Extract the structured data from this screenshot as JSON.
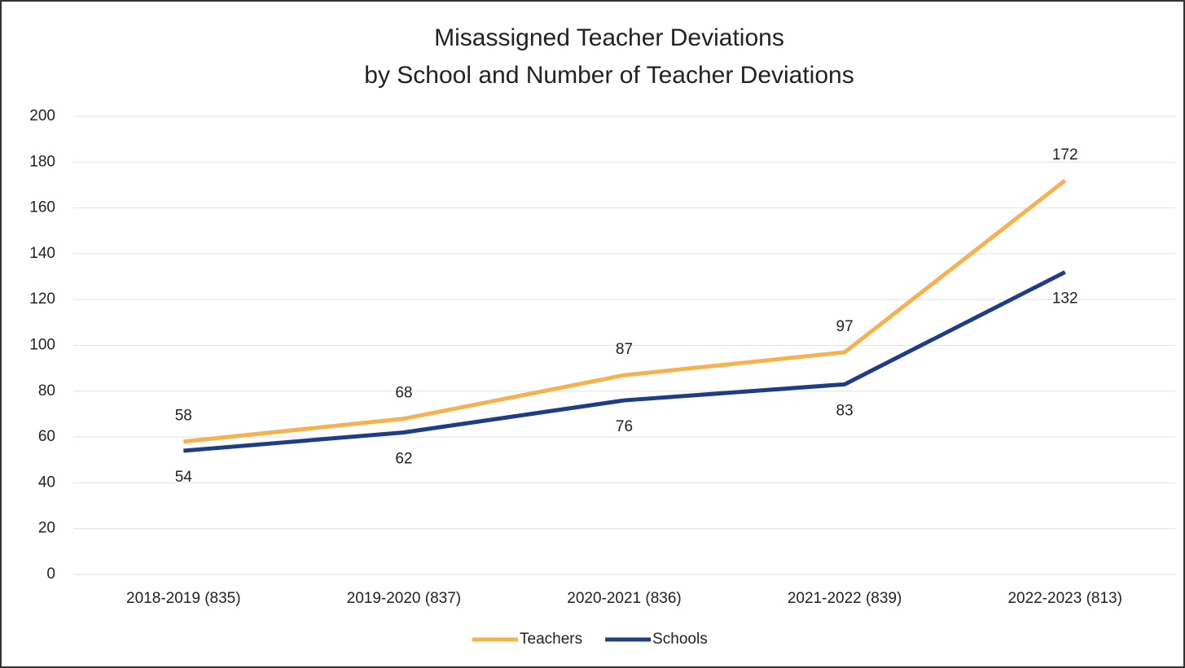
{
  "chart_data": {
    "type": "line",
    "title": [
      "Misassigned Teacher Deviations",
      "by School and Number of Teacher Deviations"
    ],
    "categories": [
      "2018-2019 (835)",
      "2019-2020 (837)",
      "2020-2021 (836)",
      "2021-2022 (839)",
      "2022-2023 (813)"
    ],
    "series": [
      {
        "name": "Teachers",
        "color": "#f7b14e",
        "values": [
          58,
          68,
          87,
          97,
          172
        ]
      },
      {
        "name": "Schools",
        "color": "#1f3d87",
        "values": [
          54,
          62,
          76,
          83,
          132
        ]
      }
    ],
    "ylim": [
      0,
      200
    ],
    "yticks": [
      0,
      20,
      40,
      60,
      80,
      100,
      120,
      140,
      160,
      180,
      200
    ],
    "grid": true,
    "legend": "bottom"
  }
}
